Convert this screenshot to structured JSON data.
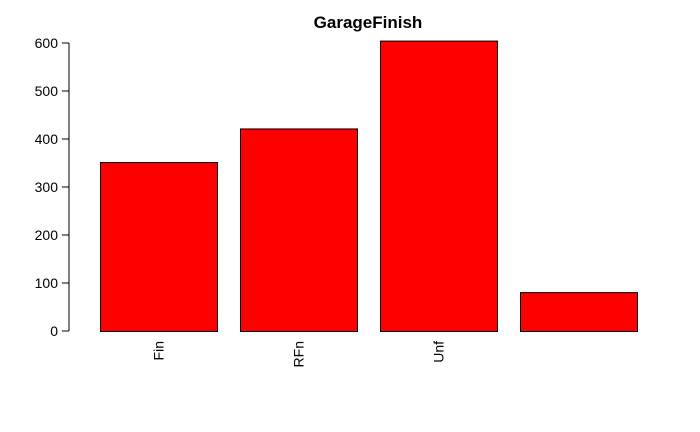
{
  "chart_data": {
    "type": "bar",
    "title": "GarageFinish",
    "xlabel": "",
    "ylabel": "",
    "categories": [
      "Fin",
      "RFn",
      "Unf",
      ""
    ],
    "values": [
      352,
      422,
      605,
      81
    ],
    "ylim": [
      0,
      600
    ],
    "yticks": [
      0,
      100,
      200,
      300,
      400,
      500,
      600
    ],
    "bar_color": "#ff0000",
    "grid": false,
    "legend": "none"
  }
}
